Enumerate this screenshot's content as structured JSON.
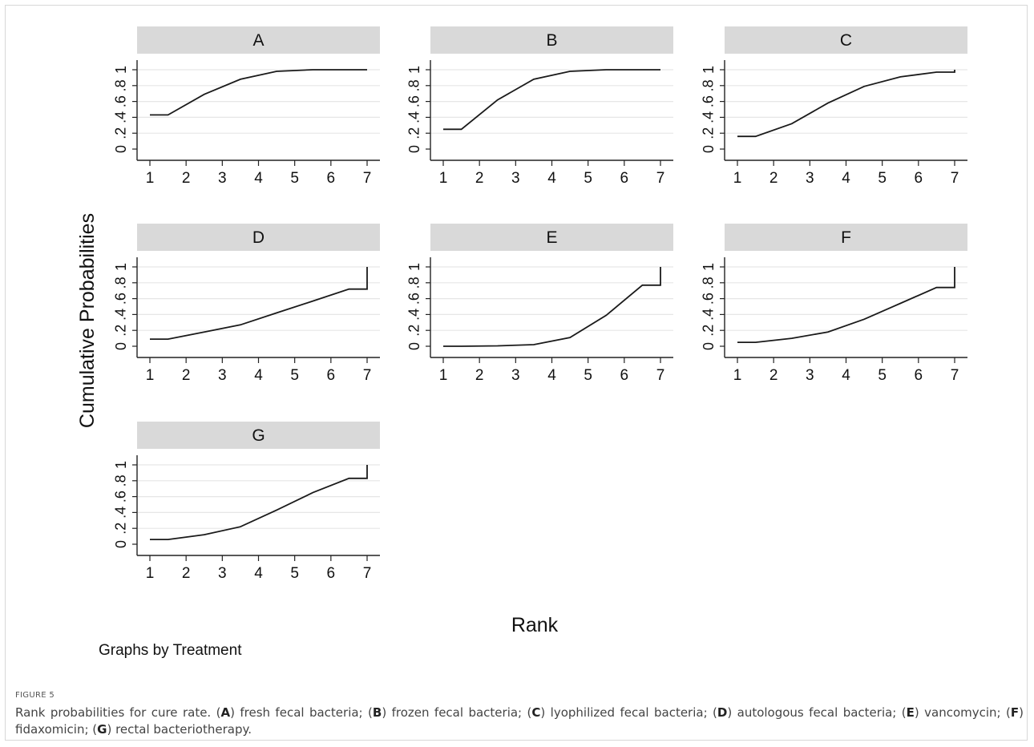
{
  "figure": {
    "ylabel": "Cumulative Probabilities",
    "xlabel": "Rank",
    "note": "Graphs by Treatment"
  },
  "caption": {
    "label": "FIGURE 5",
    "parts": [
      {
        "text": "Rank probabilities for cure rate. (",
        "bold": false
      },
      {
        "text": "A",
        "bold": true
      },
      {
        "text": ") fresh fecal bacteria; (",
        "bold": false
      },
      {
        "text": "B",
        "bold": true
      },
      {
        "text": ") frozen fecal bacteria; (",
        "bold": false
      },
      {
        "text": "C",
        "bold": true
      },
      {
        "text": ") lyophilized fecal bacteria; (",
        "bold": false
      },
      {
        "text": "D",
        "bold": true
      },
      {
        "text": ") autologous fecal bacteria; (",
        "bold": false
      },
      {
        "text": "E",
        "bold": true
      },
      {
        "text": ") vancomycin; (",
        "bold": false
      },
      {
        "text": "F",
        "bold": true
      },
      {
        "text": ") fidaxomicin; (",
        "bold": false
      },
      {
        "text": "G",
        "bold": true
      },
      {
        "text": ") rectal bacteriotherapy.",
        "bold": false
      }
    ]
  },
  "colors": {
    "strip": "#d9d9d9",
    "grid": "#e6e6e6",
    "line": "#1a1a1a",
    "axis": "#222222"
  },
  "chart_data": [
    {
      "type": "line",
      "title": "A",
      "x": [
        1,
        1.5,
        2.5,
        3.5,
        4.5,
        5.5,
        6.5,
        7,
        7
      ],
      "y": [
        0.43,
        0.43,
        0.69,
        0.88,
        0.98,
        1.0,
        1.0,
        1.0,
        1.0
      ],
      "xticks": [
        1,
        2,
        3,
        4,
        5,
        6,
        7
      ],
      "yticks": [
        "0",
        ".2",
        ".4",
        ".6",
        ".8",
        "1"
      ],
      "xlim": [
        1,
        7
      ],
      "ylim": [
        0,
        1
      ]
    },
    {
      "type": "line",
      "title": "B",
      "x": [
        1,
        1.5,
        2.5,
        3.5,
        4.5,
        5.5,
        6.5,
        7,
        7
      ],
      "y": [
        0.25,
        0.25,
        0.62,
        0.88,
        0.98,
        1.0,
        1.0,
        1.0,
        1.0
      ],
      "xticks": [
        1,
        2,
        3,
        4,
        5,
        6,
        7
      ],
      "yticks": [
        "0",
        ".2",
        ".4",
        ".6",
        ".8",
        "1"
      ],
      "xlim": [
        1,
        7
      ],
      "ylim": [
        0,
        1
      ]
    },
    {
      "type": "line",
      "title": "C",
      "x": [
        1,
        1.5,
        2.5,
        3.5,
        4.5,
        5.5,
        6.5,
        7,
        7
      ],
      "y": [
        0.16,
        0.16,
        0.32,
        0.58,
        0.79,
        0.91,
        0.97,
        0.97,
        1.0
      ],
      "xticks": [
        1,
        2,
        3,
        4,
        5,
        6,
        7
      ],
      "yticks": [
        "0",
        ".2",
        ".4",
        ".6",
        ".8",
        "1"
      ],
      "xlim": [
        1,
        7
      ],
      "ylim": [
        0,
        1
      ]
    },
    {
      "type": "line",
      "title": "D",
      "x": [
        1,
        1.5,
        2.5,
        3.5,
        4.5,
        5.5,
        6.5,
        7,
        7
      ],
      "y": [
        0.09,
        0.09,
        0.18,
        0.27,
        0.42,
        0.57,
        0.72,
        0.72,
        1.0
      ],
      "xticks": [
        1,
        2,
        3,
        4,
        5,
        6,
        7
      ],
      "yticks": [
        "0",
        ".2",
        ".4",
        ".6",
        ".8",
        "1"
      ],
      "xlim": [
        1,
        7
      ],
      "ylim": [
        0,
        1
      ]
    },
    {
      "type": "line",
      "title": "E",
      "x": [
        1,
        1.5,
        2.5,
        3.5,
        4.5,
        5.5,
        6.5,
        7,
        7
      ],
      "y": [
        0.0,
        0.0,
        0.005,
        0.02,
        0.11,
        0.39,
        0.77,
        0.77,
        1.0
      ],
      "xticks": [
        1,
        2,
        3,
        4,
        5,
        6,
        7
      ],
      "yticks": [
        "0",
        ".2",
        ".4",
        ".6",
        ".8",
        "1"
      ],
      "xlim": [
        1,
        7
      ],
      "ylim": [
        0,
        1
      ]
    },
    {
      "type": "line",
      "title": "F",
      "x": [
        1,
        1.5,
        2.5,
        3.5,
        4.5,
        5.5,
        6.5,
        7,
        7
      ],
      "y": [
        0.05,
        0.05,
        0.1,
        0.18,
        0.34,
        0.54,
        0.74,
        0.74,
        1.0
      ],
      "xticks": [
        1,
        2,
        3,
        4,
        5,
        6,
        7
      ],
      "yticks": [
        "0",
        ".2",
        ".4",
        ".6",
        ".8",
        "1"
      ],
      "xlim": [
        1,
        7
      ],
      "ylim": [
        0,
        1
      ]
    },
    {
      "type": "line",
      "title": "G",
      "x": [
        1,
        1.5,
        2.5,
        3.5,
        4.5,
        5.5,
        6.5,
        7,
        7
      ],
      "y": [
        0.06,
        0.06,
        0.12,
        0.22,
        0.43,
        0.65,
        0.83,
        0.83,
        1.0
      ],
      "xticks": [
        1,
        2,
        3,
        4,
        5,
        6,
        7
      ],
      "yticks": [
        "0",
        ".2",
        ".4",
        ".6",
        ".8",
        "1"
      ],
      "xlim": [
        1,
        7
      ],
      "ylim": [
        0,
        1
      ]
    }
  ]
}
